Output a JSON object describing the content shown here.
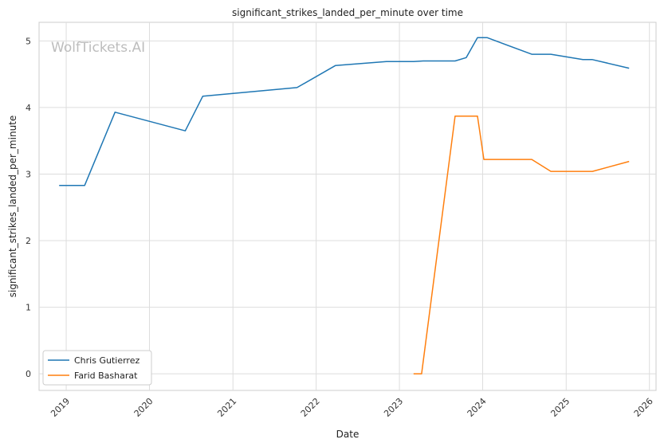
{
  "watermark": "WolfTickets.AI",
  "chart_data": {
    "type": "line",
    "title": "significant_strikes_landed_per_minute over time",
    "xlabel": "Date",
    "ylabel": "significant_strikes_landed_per_minute",
    "x_ticks": [
      "2019",
      "2020",
      "2021",
      "2022",
      "2023",
      "2024",
      "2025",
      "2026"
    ],
    "y_ticks": [
      0,
      1,
      2,
      3,
      4,
      5
    ],
    "xlim": [
      "2018-09-04",
      "2026-01-30"
    ],
    "ylim": [
      -0.25,
      5.28
    ],
    "grid": true,
    "legend_position": "lower-left",
    "series": [
      {
        "name": "Chris Gutierrez",
        "color": "#1f77b4",
        "points": [
          [
            "2018-12-01",
            2.83
          ],
          [
            "2019-03-23",
            2.83
          ],
          [
            "2019-08-03",
            3.93
          ],
          [
            "2020-06-06",
            3.65
          ],
          [
            "2020-08-22",
            4.17
          ],
          [
            "2021-10-09",
            4.3
          ],
          [
            "2022-03-26",
            4.63
          ],
          [
            "2022-11-05",
            4.69
          ],
          [
            "2023-03-04",
            4.69
          ],
          [
            "2023-04-15",
            4.7
          ],
          [
            "2023-09-02",
            4.7
          ],
          [
            "2023-10-21",
            4.75
          ],
          [
            "2023-12-09",
            5.05
          ],
          [
            "2024-01-20",
            5.05
          ],
          [
            "2024-08-03",
            4.8
          ],
          [
            "2024-10-26",
            4.8
          ],
          [
            "2025-03-15",
            4.72
          ],
          [
            "2025-04-26",
            4.72
          ],
          [
            "2025-10-04",
            4.59
          ]
        ]
      },
      {
        "name": "Farid Basharat",
        "color": "#ff7f0e",
        "points": [
          [
            "2023-03-04",
            0.0
          ],
          [
            "2023-04-08",
            0.0
          ],
          [
            "2023-09-02",
            3.87
          ],
          [
            "2023-12-09",
            3.87
          ],
          [
            "2024-01-06",
            3.22
          ],
          [
            "2024-08-03",
            3.22
          ],
          [
            "2024-10-26",
            3.04
          ],
          [
            "2025-04-26",
            3.04
          ],
          [
            "2025-10-04",
            3.19
          ]
        ]
      }
    ]
  }
}
